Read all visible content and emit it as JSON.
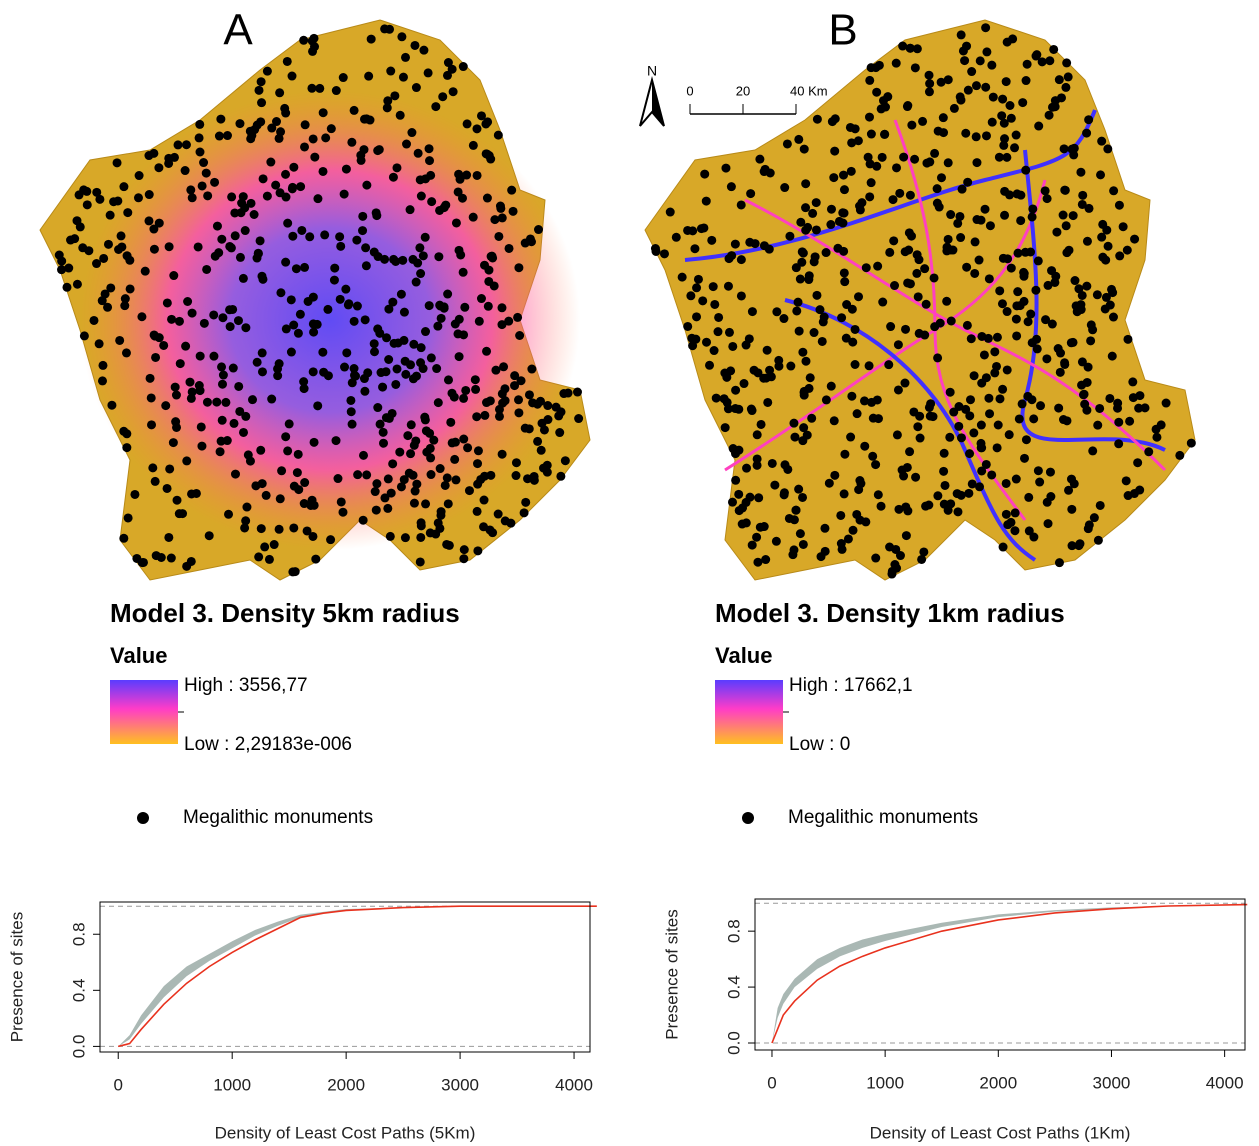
{
  "panels": [
    {
      "label": "A",
      "map_title": "Model 3. Density 5km radius",
      "legend_title": "Value",
      "high": "High : 3556,77",
      "low": "Low : 2,29183e-006",
      "points": "Megalithic monuments"
    },
    {
      "label": "B",
      "map_title": "Model 3. Density 1km radius",
      "legend_title": "Value",
      "high": "High : 17662,1",
      "low": "Low : 0",
      "points": "Megalithic monuments"
    }
  ],
  "scale_bar": {
    "north": "N",
    "ticks": [
      "0",
      "20",
      "40 Km"
    ]
  },
  "chart_data": [
    {
      "type": "line",
      "xlabel": "Density of Least Cost Paths (5Km)",
      "ylabel": "Presence of sites",
      "x": [
        0,
        100,
        200,
        400,
        600,
        800,
        1000,
        1200,
        1400,
        1600,
        1800,
        2000,
        2500,
        3000,
        4200
      ],
      "series": [
        {
          "color": "#e8321e",
          "values": [
            0,
            0.02,
            0.12,
            0.3,
            0.45,
            0.57,
            0.67,
            0.76,
            0.84,
            0.92,
            0.95,
            0.97,
            0.99,
            1.0,
            1.0
          ]
        }
      ],
      "band": {
        "color": "#aab8b4",
        "low": [
          0,
          0.05,
          0.16,
          0.35,
          0.5,
          0.61,
          0.7,
          0.79,
          0.86,
          0.92,
          0.95,
          0.97,
          0.99,
          1.0,
          1.0
        ],
        "high": [
          0,
          0.08,
          0.22,
          0.43,
          0.57,
          0.66,
          0.75,
          0.83,
          0.89,
          0.94,
          0.96,
          0.98,
          0.99,
          1.0,
          1.0
        ]
      },
      "xlim": [
        -160,
        4140
      ],
      "ylim": [
        -0.04,
        1.03
      ],
      "xticks": [
        0,
        1000,
        2000,
        3000,
        4000
      ],
      "yticks": [
        {
          "value": 0,
          "label": "0.0"
        },
        0.4,
        0.8
      ]
    },
    {
      "type": "line",
      "xlabel": "Density of Least Cost Paths (1Km)",
      "ylabel": "Presence of sites",
      "x": [
        0,
        50,
        100,
        200,
        400,
        600,
        800,
        1000,
        1500,
        2000,
        2500,
        3000,
        3500,
        4200
      ],
      "series": [
        {
          "color": "#e8321e",
          "values": [
            0,
            0.1,
            0.2,
            0.3,
            0.45,
            0.55,
            0.62,
            0.68,
            0.8,
            0.88,
            0.93,
            0.96,
            0.98,
            0.99
          ]
        }
      ],
      "band": {
        "color": "#aab8b4",
        "low": [
          0,
          0.18,
          0.28,
          0.4,
          0.53,
          0.62,
          0.68,
          0.73,
          0.83,
          0.9,
          0.94,
          0.96,
          0.98,
          0.99
        ],
        "high": [
          0,
          0.25,
          0.35,
          0.46,
          0.6,
          0.68,
          0.74,
          0.78,
          0.86,
          0.92,
          0.95,
          0.97,
          0.98,
          0.99
        ]
      },
      "xlim": [
        -150,
        4180
      ],
      "ylim": [
        -0.05,
        1.03
      ],
      "xticks": [
        0,
        1000,
        2000,
        3000,
        4000
      ],
      "yticks": [
        {
          "value": 0,
          "label": "0.0"
        },
        0.4,
        0.8
      ]
    }
  ]
}
